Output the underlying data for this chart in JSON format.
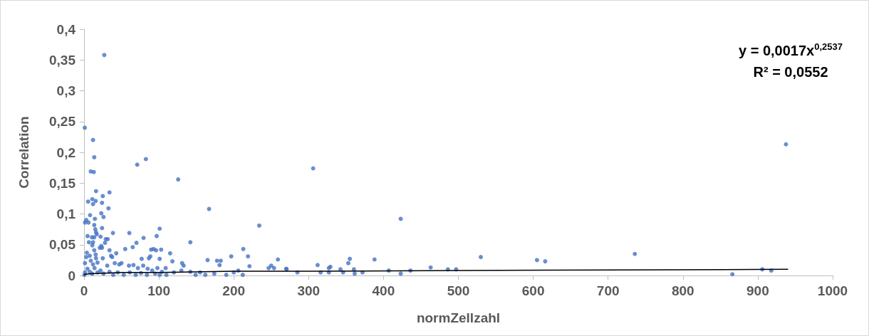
{
  "chart_data": {
    "type": "scatter",
    "xlabel": "normZellzahl",
    "ylabel": "Correlation",
    "annotations": [
      "y = 0,0017x$^{0,2537}$",
      "R² = 0,0552"
    ],
    "xlim": [
      0,
      1000
    ],
    "xticks": [
      0,
      100,
      200,
      300,
      400,
      500,
      600,
      700,
      800,
      900,
      1000
    ],
    "ylim": [
      0,
      0.4
    ],
    "yticks": [
      0,
      {
        "value": 0.05,
        "label": "0,05"
      },
      {
        "value": 0.1,
        "label": "0,1"
      },
      {
        "value": 0.15,
        "label": "0,15"
      },
      {
        "value": 0.2,
        "label": "0,2"
      },
      {
        "value": 0.25,
        "label": "0,25"
      },
      {
        "value": 0.3,
        "label": "0,3"
      },
      {
        "value": 0.35,
        "label": "0,35"
      },
      {
        "value": 0.4,
        "label": "0,4"
      }
    ],
    "grid": false,
    "marker": "circle",
    "series": [
      {
        "color": "#4472c4",
        "x": [
          27,
          1,
          12,
          13.6,
          9,
          13,
          71,
          82.6,
          125.7,
          167,
          234,
          16,
          34,
          25,
          5.4,
          11,
          12,
          15.5,
          24,
          32.6,
          23,
          26,
          8,
          14.5,
          1.3,
          3,
          6,
          13.6,
          15,
          24,
          16,
          17,
          4.7,
          10.5,
          13.6,
          22,
          38.6,
          60.5,
          29,
          31.6,
          6.5,
          12,
          28,
          79.5,
          70,
          101,
          97,
          142,
          11,
          13.6,
          21,
          24,
          23,
          34,
          43,
          55,
          65,
          89.6,
          92.8,
          96.2,
          103,
          36,
          37.6,
          77,
          86.6,
          88.5,
          101,
          115,
          118,
          165,
          177.6,
          182.6,
          181,
          196.6,
          212.7,
          219,
          221,
          259,
          250,
          246.6,
          253.8,
          270,
          285,
          306,
          423,
          530,
          605,
          616,
          388,
          355,
          353,
          312,
          327,
          329,
          342.5,
          360.5,
          463,
          486,
          497,
          407,
          436,
          316,
          327,
          346,
          372,
          361.5,
          423,
          270.6,
          937.6,
          735.7,
          866,
          906,
          918,
          3.8,
          2.9,
          7.6,
          15.5,
          16,
          25,
          9,
          1.3,
          12,
          18,
          31,
          41,
          47,
          50,
          60,
          66,
          72,
          79,
          85,
          91,
          98,
          104,
          109,
          1.3,
          4.5,
          7.6,
          10.8,
          14,
          18,
          22,
          26,
          34,
          39,
          45,
          53,
          61,
          69,
          76,
          84,
          95,
          101,
          110,
          120,
          130,
          131,
          133,
          142,
          149,
          155,
          162,
          174,
          190,
          200,
          206,
          212,
          0.5
        ],
        "values": [
          0.358,
          0.24,
          0.22,
          0.192,
          0.169,
          0.168,
          0.18,
          0.189,
          0.156,
          0.108,
          0.081,
          0.137,
          0.135,
          0.129,
          0.12,
          0.124,
          0.116,
          0.121,
          0.118,
          0.109,
          0.101,
          0.095,
          0.098,
          0.092,
          0.086,
          0.09,
          0.086,
          0.082,
          0.075,
          0.077,
          0.07,
          0.067,
          0.064,
          0.062,
          0.062,
          0.063,
          0.069,
          0.069,
          0.059,
          0.059,
          0.054,
          0.054,
          0.053,
          0.061,
          0.053,
          0.076,
          0.064,
          0.054,
          0.049,
          0.041,
          0.045,
          0.045,
          0.048,
          0.041,
          0.036,
          0.043,
          0.046,
          0.042,
          0.043,
          0.041,
          0.042,
          0.032,
          0.03,
          0.027,
          0.028,
          0.031,
          0.027,
          0.036,
          0.023,
          0.025,
          0.024,
          0.024,
          0.017,
          0.031,
          0.043,
          0.031,
          0.015,
          0.026,
          0.016,
          0.012,
          0.012,
          0.011,
          0.005,
          0.174,
          0.092,
          0.03,
          0.025,
          0.023,
          0.026,
          0.027,
          0.02,
          0.017,
          0.012,
          0.014,
          0.01,
          0.01,
          0.013,
          0.01,
          0.01,
          0.008,
          0.008,
          0.005,
          0.005,
          0.005,
          0.005,
          0.003,
          0.003,
          0.01,
          0.213,
          0.035,
          0.002,
          0.01,
          0.008,
          0.037,
          0.03,
          0.032,
          0.034,
          0.028,
          0.028,
          0.024,
          0.02,
          0.018,
          0.021,
          0.016,
          0.02,
          0.018,
          0.02,
          0.016,
          0.017,
          0.012,
          0.016,
          0.011,
          0.008,
          0.012,
          0.006,
          0.012,
          0.005,
          0.011,
          0.006,
          0.003,
          0.012,
          0.005,
          0.008,
          0.003,
          0.006,
          0.001,
          0.005,
          0.001,
          0.005,
          0.001,
          0.004,
          0.001,
          0.003,
          0.001,
          0.001,
          0.005,
          0.008,
          0.02,
          0.016,
          0.006,
          0.001,
          0.005,
          0.001,
          0.003,
          0.001,
          0.005,
          0.008,
          0.001,
          0.001
        ]
      },
      {
        "type": "line",
        "color": "#000000",
        "marker": "none",
        "line_style": "solid",
        "x": [
          0.5,
          1,
          10,
          50,
          100,
          200,
          300,
          500,
          700,
          940
        ],
        "values": [
          0.001,
          0.002,
          0.003,
          0.005,
          0.005,
          0.007,
          0.007,
          0.008,
          0.009,
          0.01
        ]
      }
    ]
  }
}
